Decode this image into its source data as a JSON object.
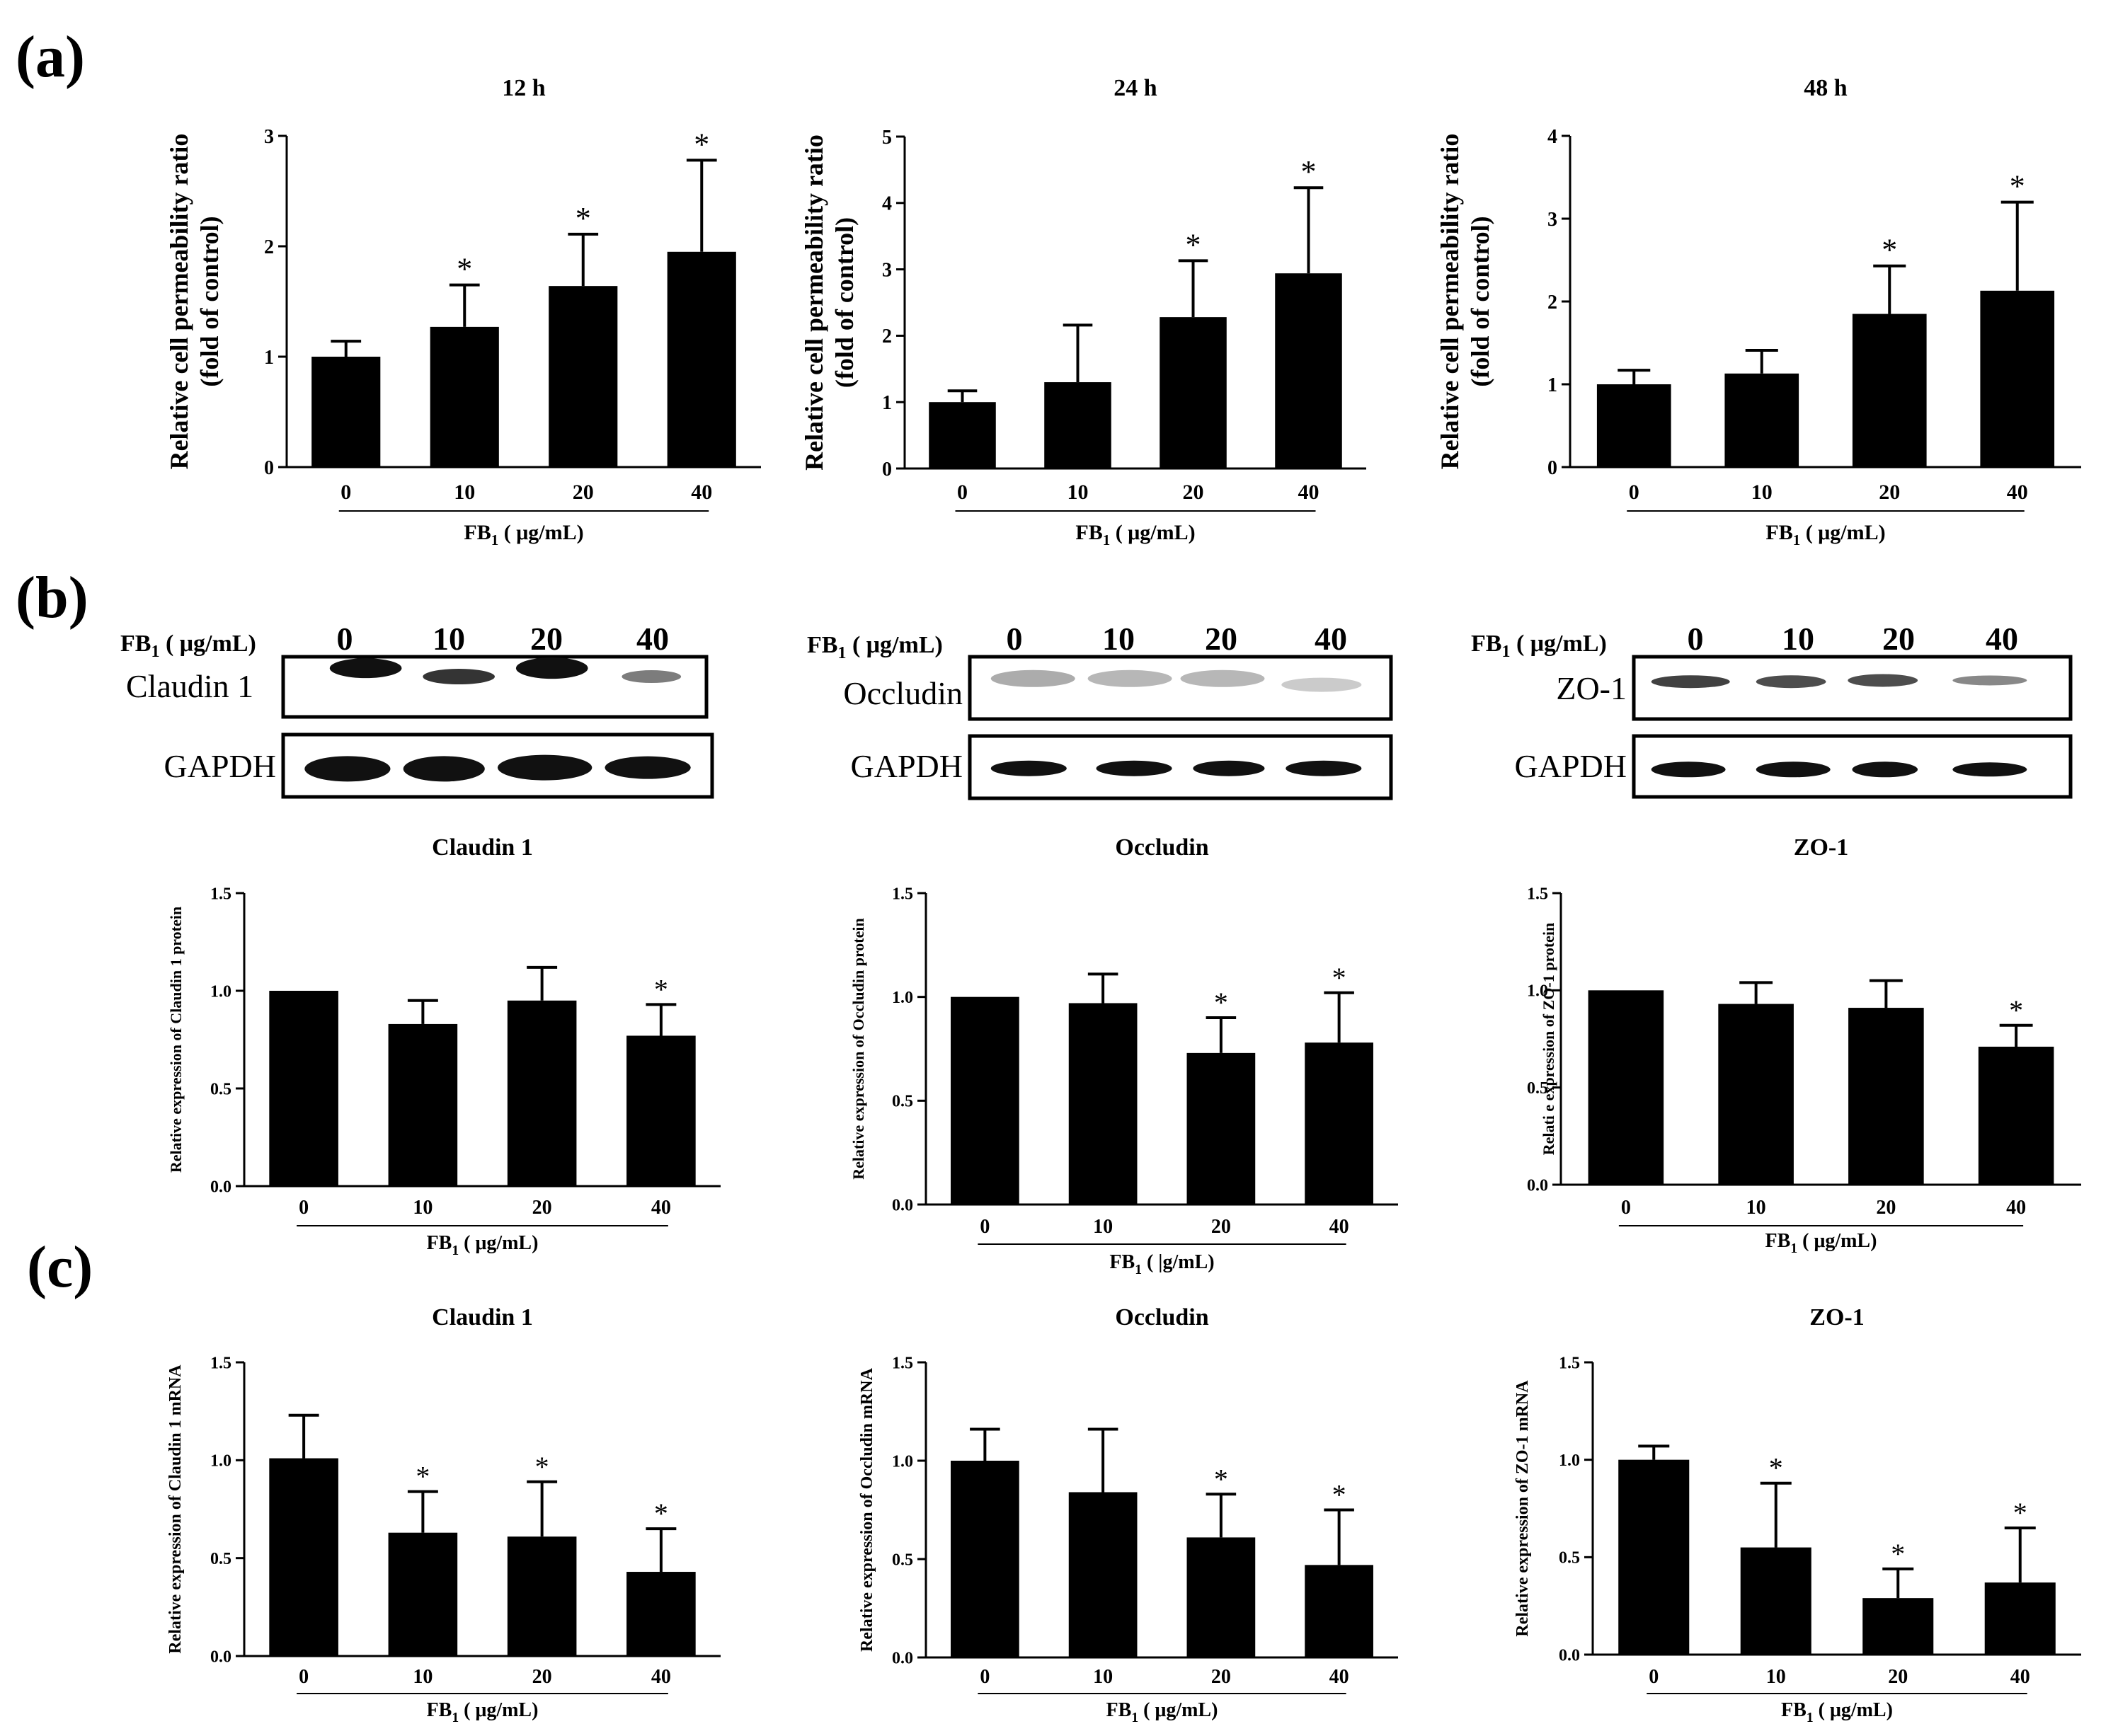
{
  "panels": {
    "a": "(a)",
    "b": "(b)",
    "c": "(c)"
  },
  "xaxis_label_main": "FB",
  "xaxis_label_sub": "1",
  "xaxis_label_unit": " ( μg/mL)",
  "xaxis_label_unit_occludin": " ( |g/mL)",
  "blots": [
    {
      "header_main": "FB",
      "header_sub": "1",
      "header_unit": " ( μg/mL)",
      "lanes": [
        "0",
        "10",
        "20",
        "40"
      ],
      "target": "Claudin 1",
      "loading": "GAPDH"
    },
    {
      "header_main": "FB",
      "header_sub": "1",
      "header_unit": " ( μg/mL)",
      "lanes": [
        "0",
        "10",
        "20",
        "40"
      ],
      "target": "Occludin",
      "loading": "GAPDH"
    },
    {
      "header_main": "FB",
      "header_sub": "1",
      "header_unit": " ( μg/mL)",
      "lanes": [
        "0",
        "10",
        "20",
        "40"
      ],
      "target": "ZO-1",
      "loading": "GAPDH"
    }
  ],
  "chart_data": [
    {
      "panel": "a",
      "type": "bar",
      "title": "12 h",
      "ylabel": [
        "Relative cell permeability ratio",
        "(fold of control)"
      ],
      "xlabel": "FB1 ( μg/mL)",
      "categories": [
        "0",
        "10",
        "20",
        "40"
      ],
      "values": [
        1.0,
        1.27,
        1.64,
        1.95
      ],
      "errors": [
        0.14,
        0.38,
        0.47,
        0.83
      ],
      "significant": [
        false,
        true,
        true,
        true
      ],
      "ylim": [
        0,
        3
      ],
      "yticks": [
        "0",
        "1",
        "2",
        "3"
      ],
      "ytick_values": [
        0,
        1,
        2,
        3
      ]
    },
    {
      "panel": "a",
      "type": "bar",
      "title": "24 h",
      "ylabel": [
        "Relative cell permeability ratio",
        "(fold of control)"
      ],
      "xlabel": "FB1 ( μg/mL)",
      "categories": [
        "0",
        "10",
        "20",
        "40"
      ],
      "values": [
        1.0,
        1.3,
        2.28,
        2.94
      ],
      "errors": [
        0.17,
        0.86,
        0.85,
        1.29
      ],
      "significant": [
        false,
        false,
        true,
        true
      ],
      "ylim": [
        0,
        5
      ],
      "yticks": [
        "0",
        "1",
        "2",
        "3",
        "4",
        "5"
      ],
      "ytick_values": [
        0,
        1,
        2,
        3,
        4,
        5
      ]
    },
    {
      "panel": "a",
      "type": "bar",
      "title": "48 h",
      "ylabel": [
        "Relative cell permeability ratio",
        "(fold of control)"
      ],
      "xlabel": "FB1 ( μg/mL)",
      "categories": [
        "0",
        "10",
        "20",
        "40"
      ],
      "values": [
        1.0,
        1.13,
        1.85,
        2.13
      ],
      "errors": [
        0.17,
        0.28,
        0.58,
        1.07
      ],
      "significant": [
        false,
        false,
        true,
        true
      ],
      "ylim": [
        0,
        4
      ],
      "yticks": [
        "0",
        "1",
        "2",
        "3",
        "4"
      ],
      "ytick_values": [
        0,
        1,
        2,
        3,
        4
      ]
    },
    {
      "panel": "b",
      "type": "bar",
      "title": "Claudin 1",
      "ylabel": [
        "Relative expression of Claudin 1 protein"
      ],
      "xlabel": "FB1 ( μg/mL)",
      "categories": [
        "0",
        "10",
        "20",
        "40"
      ],
      "values": [
        1.0,
        0.83,
        0.95,
        0.77
      ],
      "errors": [
        0.0,
        0.12,
        0.17,
        0.16
      ],
      "significant": [
        false,
        false,
        false,
        true
      ],
      "ylim": [
        0,
        1.5
      ],
      "yticks": [
        "0.0",
        "0.5",
        "1.0",
        "1.5"
      ],
      "ytick_values": [
        0,
        0.5,
        1.0,
        1.5
      ]
    },
    {
      "panel": "b",
      "type": "bar",
      "title": "Occludin",
      "ylabel": [
        "Relative expression of Occludin protein"
      ],
      "xlabel": "FB1 ( |g/mL)",
      "categories": [
        "0",
        "10",
        "20",
        "40"
      ],
      "values": [
        1.0,
        0.97,
        0.73,
        0.78
      ],
      "errors": [
        0.0,
        0.14,
        0.17,
        0.24
      ],
      "significant": [
        false,
        false,
        true,
        true
      ],
      "ylim": [
        0,
        1.5
      ],
      "yticks": [
        "0.0",
        "0.5",
        "1.0",
        "1.5"
      ],
      "ytick_values": [
        0,
        0.5,
        1.0,
        1.5
      ]
    },
    {
      "panel": "b",
      "type": "bar",
      "title": "ZO-1",
      "ylabel": [
        "Relati e expression of ZO-1 protein"
      ],
      "xlabel": "FB1 ( μg/mL)",
      "categories": [
        "0",
        "10",
        "20",
        "40"
      ],
      "values": [
        1.0,
        0.93,
        0.91,
        0.71
      ],
      "errors": [
        0.0,
        0.11,
        0.14,
        0.11
      ],
      "significant": [
        false,
        false,
        false,
        true
      ],
      "ylim": [
        0,
        1.5
      ],
      "yticks": [
        "0.0",
        "0.5",
        "1.0",
        "1.5"
      ],
      "ytick_values": [
        0,
        0.5,
        1.0,
        1.5
      ]
    },
    {
      "panel": "c",
      "type": "bar",
      "title": "Claudin 1",
      "ylabel": [
        "Relative expression of Claudin 1 mRNA"
      ],
      "xlabel": "FB1 ( μg/mL)",
      "categories": [
        "0",
        "10",
        "20",
        "40"
      ],
      "values": [
        1.01,
        0.63,
        0.61,
        0.43
      ],
      "errors": [
        0.22,
        0.21,
        0.28,
        0.22
      ],
      "significant": [
        false,
        true,
        true,
        true
      ],
      "ylim": [
        0,
        1.5
      ],
      "yticks": [
        "0.0",
        "0.5",
        "1.0",
        "1.5"
      ],
      "ytick_values": [
        0,
        0.5,
        1.0,
        1.5
      ]
    },
    {
      "panel": "c",
      "type": "bar",
      "title": "Occludin",
      "ylabel": [
        "Relative expression of Occludin mRNA"
      ],
      "xlabel": "FB1 ( μg/mL)",
      "categories": [
        "0",
        "10",
        "20",
        "40"
      ],
      "values": [
        1.0,
        0.84,
        0.61,
        0.47
      ],
      "errors": [
        0.16,
        0.32,
        0.22,
        0.28
      ],
      "significant": [
        false,
        false,
        true,
        true
      ],
      "ylim": [
        0,
        1.5
      ],
      "yticks": [
        "0.0",
        "0.5",
        "1.0",
        "1.5"
      ],
      "ytick_values": [
        0,
        0.5,
        1.0,
        1.5
      ]
    },
    {
      "panel": "c",
      "type": "bar",
      "title": "ZO-1",
      "ylabel": [
        "Relative expression of ZO-1 mRNA"
      ],
      "xlabel": "FB1 ( μg/mL)",
      "categories": [
        "0",
        "10",
        "20",
        "40"
      ],
      "values": [
        1.0,
        0.55,
        0.29,
        0.37
      ],
      "errors": [
        0.07,
        0.33,
        0.15,
        0.28
      ],
      "significant": [
        false,
        true,
        true,
        true
      ],
      "ylim": [
        0,
        1.5
      ],
      "yticks": [
        "0.0",
        "0.5",
        "1.0",
        "1.5"
      ],
      "ytick_values": [
        0,
        0.5,
        1.0,
        1.5
      ]
    }
  ]
}
